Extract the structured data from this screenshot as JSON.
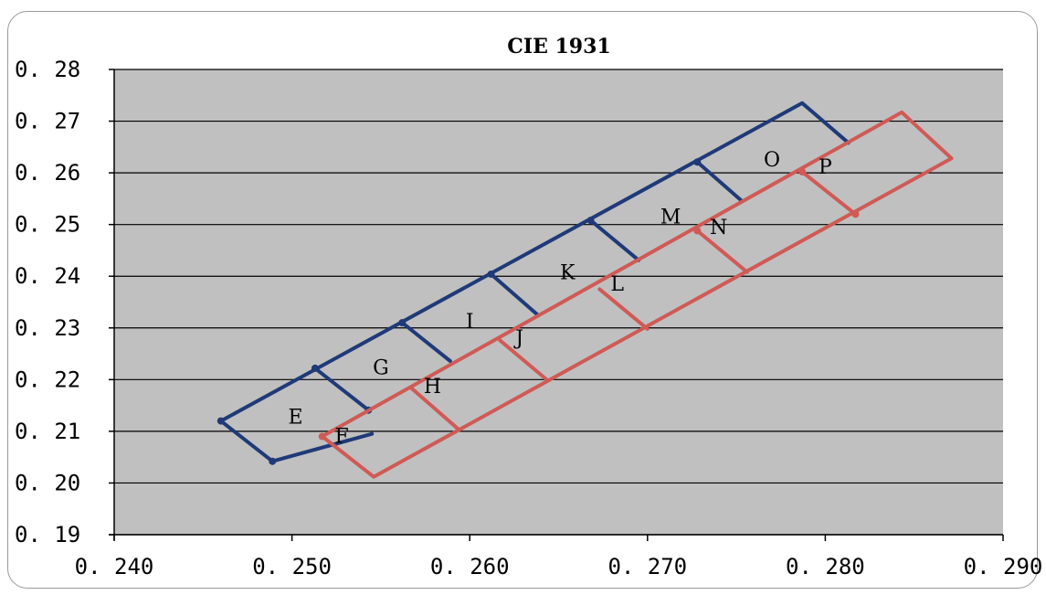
{
  "chart_data": {
    "type": "line",
    "title": "CIE 1931",
    "xlabel": "",
    "ylabel": "",
    "xlim": [
      0.24,
      0.29
    ],
    "ylim": [
      0.19,
      0.28
    ],
    "x_ticks": [
      "0.240",
      "0.250",
      "0.260",
      "0.270",
      "0.280",
      "0.290"
    ],
    "y_ticks": [
      "0.19",
      "0.20",
      "0.21",
      "0.22",
      "0.23",
      "0.24",
      "0.25",
      "0.26",
      "0.27",
      "0.28"
    ],
    "grid": "horizontal",
    "background": "#c0c0c0",
    "colors": {
      "blue_series": "#1f3a78",
      "red_series": "#d05a55"
    },
    "series": [
      {
        "color": "#1f3a78",
        "segments": [
          [
            [
              0.246,
              0.212
            ],
            [
              0.2787,
              0.2735
            ],
            [
              0.2813,
              0.2658
            ]
          ],
          [
            [
              0.246,
              0.212
            ],
            [
              0.2489,
              0.2042
            ]
          ],
          [
            [
              0.2489,
              0.2042
            ],
            [
              0.2545,
              0.2095
            ]
          ],
          [
            [
              0.2513,
              0.2222
            ],
            [
              0.2543,
              0.2141
            ]
          ],
          [
            [
              0.2562,
              0.231
            ],
            [
              0.2589,
              0.2236
            ]
          ],
          [
            [
              0.2612,
              0.2404
            ],
            [
              0.2638,
              0.2326
            ]
          ],
          [
            [
              0.2668,
              0.2508
            ],
            [
              0.2695,
              0.2431
            ]
          ],
          [
            [
              0.2728,
              0.2621
            ],
            [
              0.2753,
              0.2546
            ]
          ]
        ],
        "points": [
          [
            0.246,
            0.212
          ],
          [
            0.2489,
            0.2042
          ],
          [
            0.2513,
            0.2222
          ],
          [
            0.2543,
            0.2141
          ],
          [
            0.2562,
            0.231
          ],
          [
            0.2612,
            0.2404
          ],
          [
            0.2668,
            0.2508
          ],
          [
            0.2728,
            0.2621
          ]
        ]
      },
      {
        "color": "#d05a55",
        "segments": [
          [
            [
              0.2517,
              0.209
            ],
            [
              0.2843,
              0.2717
            ],
            [
              0.2871,
              0.2628
            ],
            [
              0.2546,
              0.2012
            ],
            [
              0.2517,
              0.209
            ]
          ],
          [
            [
              0.2567,
              0.2184
            ],
            [
              0.2594,
              0.2103
            ]
          ],
          [
            [
              0.2617,
              0.2276
            ],
            [
              0.2644,
              0.2198
            ]
          ],
          [
            [
              0.2673,
              0.2375
            ],
            [
              0.27,
              0.2298
            ]
          ],
          [
            [
              0.2728,
              0.2488
            ],
            [
              0.2756,
              0.2408
            ]
          ],
          [
            [
              0.2787,
              0.2602
            ],
            [
              0.2817,
              0.252
            ]
          ]
        ],
        "points": [
          [
            0.2517,
            0.209
          ],
          [
            0.2728,
            0.2488
          ],
          [
            0.2787,
            0.2602
          ],
          [
            0.2817,
            0.252
          ]
        ]
      }
    ],
    "region_labels": [
      {
        "text": "E",
        "x": 0.2502,
        "y": 0.2115
      },
      {
        "text": "F",
        "x": 0.2528,
        "y": 0.2078
      },
      {
        "text": "G",
        "x": 0.255,
        "y": 0.221
      },
      {
        "text": "H",
        "x": 0.2579,
        "y": 0.2174
      },
      {
        "text": "I",
        "x": 0.26,
        "y": 0.23
      },
      {
        "text": "J",
        "x": 0.2628,
        "y": 0.2268
      },
      {
        "text": "K",
        "x": 0.2655,
        "y": 0.2394
      },
      {
        "text": "L",
        "x": 0.2683,
        "y": 0.2372
      },
      {
        "text": "M",
        "x": 0.2713,
        "y": 0.2502
      },
      {
        "text": "N",
        "x": 0.274,
        "y": 0.2482
      },
      {
        "text": "O",
        "x": 0.277,
        "y": 0.2613
      },
      {
        "text": "P",
        "x": 0.28,
        "y": 0.2598
      }
    ]
  }
}
